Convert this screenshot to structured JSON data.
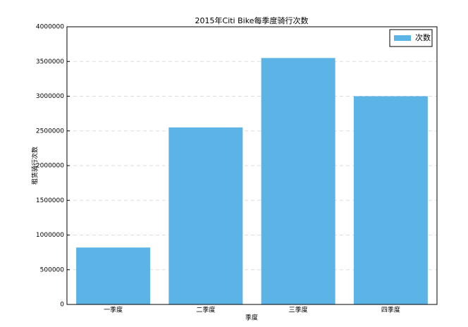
{
  "chart_data": {
    "type": "bar",
    "title": "2015年Citi Bike每季度骑行次数",
    "x_label": "季度",
    "y_label": "租赁骑行次数",
    "categories": [
      "一季度",
      "二季度",
      "三季度",
      "四季度"
    ],
    "series": [
      {
        "name": "次数",
        "color": "#5cb3e6",
        "values": [
          820000,
          2550000,
          3550000,
          3000000
        ]
      }
    ],
    "ylim": [
      0,
      4000000
    ],
    "yticks": [
      0,
      500000,
      1000000,
      1500000,
      2000000,
      2500000,
      3000000,
      3500000,
      4000000
    ],
    "grid": true,
    "legend": "upper right"
  }
}
